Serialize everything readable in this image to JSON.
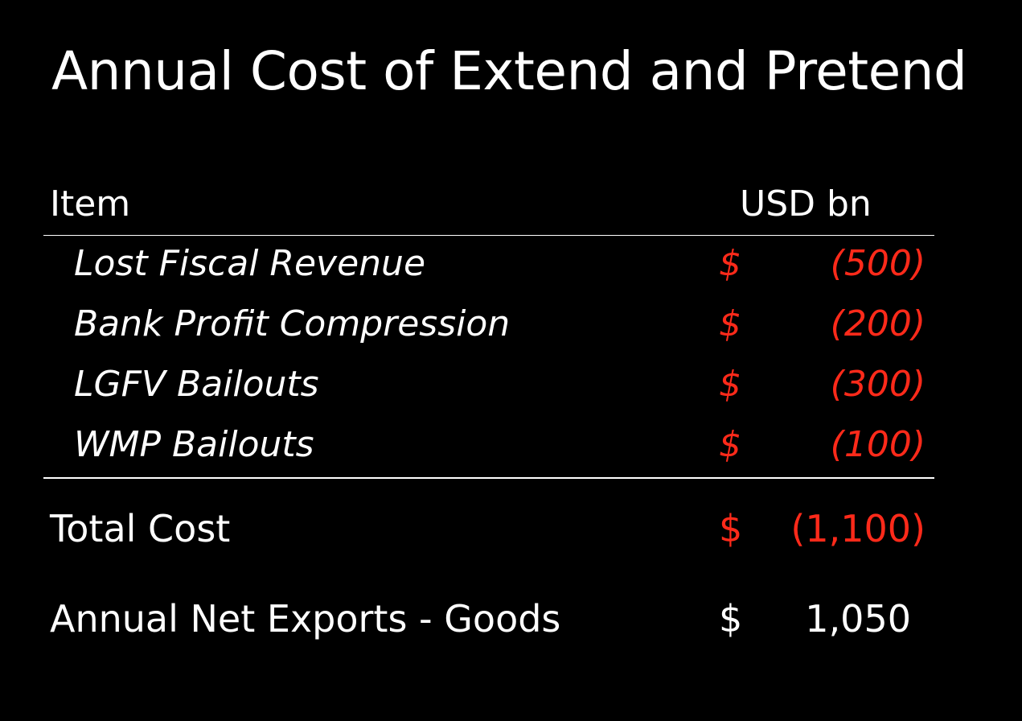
{
  "title": "Annual Cost of Extend and Pretend",
  "table": {
    "header": {
      "item": "Item",
      "unit": "USD bn"
    },
    "rows": [
      {
        "label": "Lost Fiscal Revenue",
        "currency": "$",
        "amount": "(500)"
      },
      {
        "label": "Bank Profit Compression",
        "currency": "$",
        "amount": "(200)"
      },
      {
        "label": "LGFV Bailouts",
        "currency": "$",
        "amount": "(300)"
      },
      {
        "label": "WMP Bailouts",
        "currency": "$",
        "amount": "(100)"
      }
    ],
    "total": {
      "label": "Total Cost",
      "currency": "$",
      "amount": "(1,100)"
    },
    "net_exports": {
      "label": "Annual Net Exports - Goods",
      "currency": "$",
      "amount": "1,050"
    }
  },
  "colors": {
    "negative": "#ff2a1a",
    "text": "#ffffff",
    "background": "#000000"
  }
}
